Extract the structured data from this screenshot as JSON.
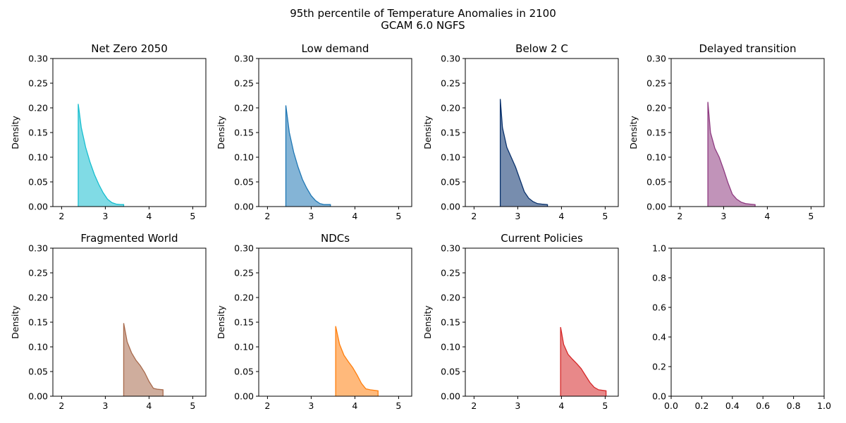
{
  "figure": {
    "title_line1": "95th percentile of Temperature Anomalies in 2100",
    "title_line2": "GCAM 6.0 NGFS"
  },
  "chart_data": [
    {
      "type": "area",
      "title": "Net Zero 2050",
      "xlabel": "",
      "ylabel": "Density",
      "xlim": [
        1.8,
        5.3
      ],
      "ylim": [
        0,
        0.3
      ],
      "xticks": [
        2,
        3,
        4,
        5
      ],
      "yticks": [
        0.0,
        0.05,
        0.1,
        0.15,
        0.2,
        0.25,
        0.3
      ],
      "color": "#17becf",
      "series": [
        {
          "x": [
            2.38,
            2.45,
            2.55,
            2.65,
            2.75,
            2.85,
            2.95,
            3.05,
            3.15,
            3.25,
            3.35,
            3.42
          ],
          "y": [
            0.208,
            0.16,
            0.12,
            0.09,
            0.065,
            0.045,
            0.028,
            0.015,
            0.008,
            0.005,
            0.004,
            0.004
          ]
        }
      ]
    },
    {
      "type": "area",
      "title": "Low demand",
      "xlabel": "",
      "ylabel": "Density",
      "xlim": [
        1.8,
        5.3
      ],
      "ylim": [
        0,
        0.3
      ],
      "xticks": [
        2,
        3,
        4,
        5
      ],
      "yticks": [
        0.0,
        0.05,
        0.1,
        0.15,
        0.2,
        0.25,
        0.3
      ],
      "color": "#1f77b4",
      "series": [
        {
          "x": [
            2.42,
            2.5,
            2.6,
            2.7,
            2.8,
            2.9,
            3.0,
            3.1,
            3.2,
            3.3,
            3.44
          ],
          "y": [
            0.205,
            0.15,
            0.11,
            0.08,
            0.055,
            0.037,
            0.022,
            0.012,
            0.006,
            0.004,
            0.004
          ]
        }
      ]
    },
    {
      "type": "area",
      "title": "Below 2 C",
      "xlabel": "",
      "ylabel": "Density",
      "xlim": [
        1.8,
        5.3
      ],
      "ylim": [
        0,
        0.3
      ],
      "xticks": [
        2,
        3,
        4,
        5
      ],
      "yticks": [
        0.0,
        0.05,
        0.1,
        0.15,
        0.2,
        0.25,
        0.3
      ],
      "color": "#08306b",
      "series": [
        {
          "x": [
            2.6,
            2.65,
            2.75,
            2.85,
            2.95,
            3.05,
            3.15,
            3.25,
            3.35,
            3.45,
            3.55,
            3.68
          ],
          "y": [
            0.218,
            0.16,
            0.12,
            0.1,
            0.08,
            0.055,
            0.03,
            0.017,
            0.01,
            0.006,
            0.005,
            0.004
          ]
        }
      ]
    },
    {
      "type": "area",
      "title": "Delayed transition",
      "xlabel": "",
      "ylabel": "Density",
      "xlim": [
        1.8,
        5.3
      ],
      "ylim": [
        0,
        0.3
      ],
      "xticks": [
        2,
        3,
        4,
        5
      ],
      "yticks": [
        0.0,
        0.05,
        0.1,
        0.15,
        0.2,
        0.25,
        0.3
      ],
      "color": "#8e3a80",
      "series": [
        {
          "x": [
            2.64,
            2.7,
            2.8,
            2.9,
            3.0,
            3.1,
            3.2,
            3.3,
            3.4,
            3.5,
            3.6,
            3.72
          ],
          "y": [
            0.212,
            0.15,
            0.118,
            0.1,
            0.075,
            0.048,
            0.025,
            0.015,
            0.009,
            0.006,
            0.005,
            0.004
          ]
        }
      ]
    },
    {
      "type": "area",
      "title": "Fragmented World",
      "xlabel": "",
      "ylabel": "Density",
      "xlim": [
        1.8,
        5.3
      ],
      "ylim": [
        0,
        0.3
      ],
      "xticks": [
        2,
        3,
        4,
        5
      ],
      "yticks": [
        0.0,
        0.05,
        0.1,
        0.15,
        0.2,
        0.25,
        0.3
      ],
      "color": "#a86a4c",
      "series": [
        {
          "x": [
            3.42,
            3.5,
            3.6,
            3.7,
            3.8,
            3.9,
            4.0,
            4.1,
            4.2,
            4.32
          ],
          "y": [
            0.148,
            0.11,
            0.088,
            0.073,
            0.062,
            0.048,
            0.03,
            0.016,
            0.014,
            0.013
          ]
        }
      ]
    },
    {
      "type": "area",
      "title": "NDCs",
      "xlabel": "",
      "ylabel": "Density",
      "xlim": [
        1.8,
        5.3
      ],
      "ylim": [
        0,
        0.3
      ],
      "xticks": [
        2,
        3,
        4,
        5
      ],
      "yticks": [
        0.0,
        0.05,
        0.1,
        0.15,
        0.2,
        0.25,
        0.3
      ],
      "color": "#ff7f0e",
      "series": [
        {
          "x": [
            3.56,
            3.65,
            3.75,
            3.85,
            3.95,
            4.05,
            4.15,
            4.25,
            4.35,
            4.53
          ],
          "y": [
            0.142,
            0.105,
            0.083,
            0.07,
            0.058,
            0.043,
            0.026,
            0.015,
            0.013,
            0.011
          ]
        }
      ]
    },
    {
      "type": "area",
      "title": "Current Policies",
      "xlabel": "",
      "ylabel": "Density",
      "xlim": [
        1.8,
        5.3
      ],
      "ylim": [
        0,
        0.3
      ],
      "xticks": [
        2,
        3,
        4,
        5
      ],
      "yticks": [
        0.0,
        0.05,
        0.1,
        0.15,
        0.2,
        0.25,
        0.3
      ],
      "color": "#d62728",
      "series": [
        {
          "x": [
            3.98,
            4.05,
            4.15,
            4.25,
            4.35,
            4.45,
            4.55,
            4.65,
            4.75,
            4.85,
            5.02
          ],
          "y": [
            0.14,
            0.105,
            0.085,
            0.075,
            0.066,
            0.056,
            0.042,
            0.028,
            0.018,
            0.013,
            0.011
          ]
        }
      ]
    },
    {
      "type": "area",
      "title": "",
      "xlabel": "",
      "ylabel": "",
      "xlim": [
        0,
        1
      ],
      "ylim": [
        0,
        1
      ],
      "xticks": [
        0.0,
        0.2,
        0.4,
        0.6,
        0.8,
        1.0
      ],
      "yticks": [
        0.0,
        0.2,
        0.4,
        0.6,
        0.8,
        1.0
      ],
      "color": "#000000",
      "series": []
    }
  ]
}
